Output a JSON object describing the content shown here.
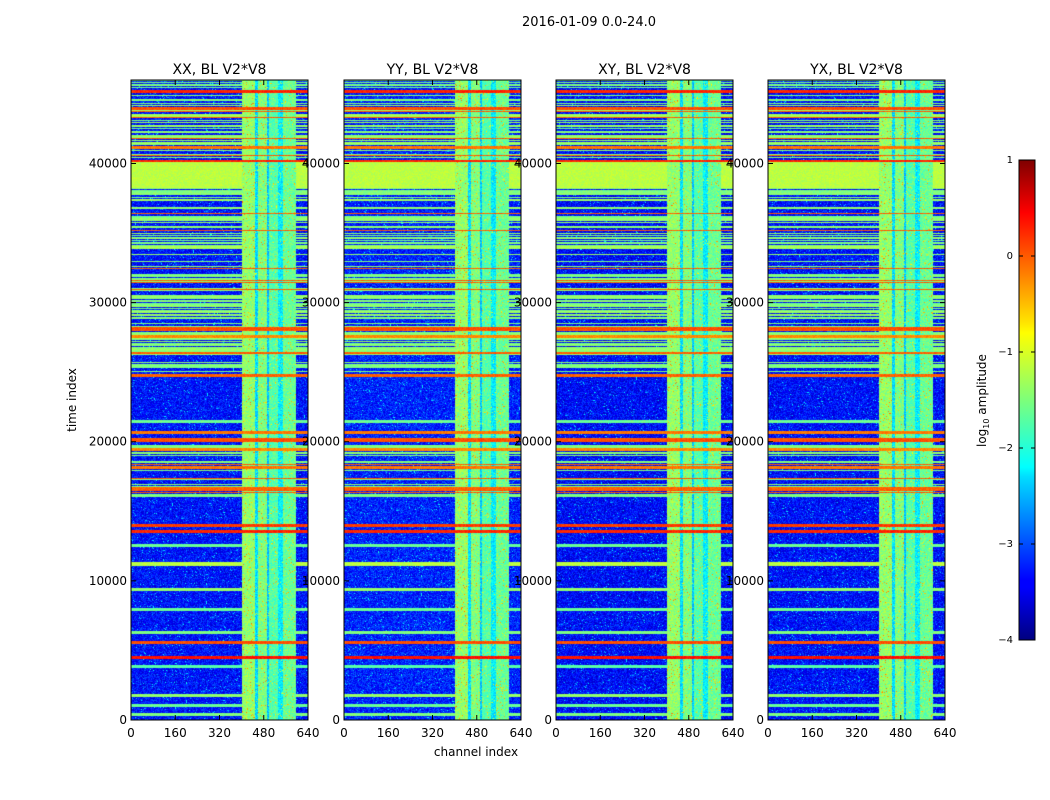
{
  "figure": {
    "suptitle": "2016-01-09 0.0-24.0",
    "ylabel": "time index",
    "xlabel": "channel index"
  },
  "colorbar": {
    "label_main": "log",
    "label_sub": "10",
    "label_tail": " amplitude",
    "range": [
      -4,
      1
    ],
    "ticks": [
      1,
      0,
      -1,
      -2,
      -3,
      -4
    ],
    "tick_labels": [
      "1",
      "0",
      "−1",
      "−2",
      "−3",
      "−4"
    ],
    "colormap": "jet"
  },
  "chart_data": {
    "type": "heatmap",
    "x_range": [
      0,
      640
    ],
    "y_range": [
      0,
      46000
    ],
    "x_ticks": [
      0,
      160,
      320,
      480,
      640
    ],
    "y_ticks": [
      0,
      10000,
      20000,
      30000,
      40000
    ],
    "value_range": [
      -4,
      1
    ],
    "background_level": -3.3,
    "panels": [
      {
        "title": "XX, BL V2*V8",
        "pol": "XX",
        "show_y_tick_zero_only": false
      },
      {
        "title": "YY, BL V2*V8",
        "pol": "YY",
        "show_y_tick_zero_only": false
      },
      {
        "title": "XY, BL V2*V8",
        "pol": "XY",
        "show_y_tick_zero_only": false
      },
      {
        "title": "YX, BL V2*V8",
        "pol": "YX",
        "show_y_tick_zero_only": false
      }
    ],
    "flagged_time_ranges": [
      {
        "from": 38300,
        "to": 40100,
        "level": -1.2
      },
      {
        "from": 11150,
        "to": 11350,
        "level": -1.2
      }
    ],
    "rfi_time_lines": [
      {
        "t": 45200,
        "level": 0.2
      },
      {
        "t": 44000,
        "level": 0.0
      },
      {
        "t": 43500,
        "level": -1.3
      },
      {
        "t": 42000,
        "level": -1.4
      },
      {
        "t": 41200,
        "level": -0.2
      },
      {
        "t": 40200,
        "level": 0.2
      },
      {
        "t": 38000,
        "level": -1.5
      },
      {
        "t": 36000,
        "level": -1.4
      },
      {
        "t": 34000,
        "level": -1.3
      },
      {
        "t": 32000,
        "level": -1.5
      },
      {
        "t": 30500,
        "level": -1.4
      },
      {
        "t": 28200,
        "level": 0.0
      },
      {
        "t": 27600,
        "level": -0.3
      },
      {
        "t": 25500,
        "level": -1.5
      },
      {
        "t": 24800,
        "level": -0.1
      },
      {
        "t": 21500,
        "level": -1.6
      },
      {
        "t": 20700,
        "level": -0.2
      },
      {
        "t": 20100,
        "level": 0.0
      },
      {
        "t": 19500,
        "level": -0.3
      },
      {
        "t": 18200,
        "level": -0.2
      },
      {
        "t": 16700,
        "level": -0.1
      },
      {
        "t": 16200,
        "level": -1.5
      },
      {
        "t": 14000,
        "level": 0.1
      },
      {
        "t": 13600,
        "level": 0.2
      },
      {
        "t": 12600,
        "level": -1.6
      },
      {
        "t": 9400,
        "level": -1.4
      },
      {
        "t": 8000,
        "level": -1.6
      },
      {
        "t": 6300,
        "level": -1.5
      },
      {
        "t": 5600,
        "level": 0.0
      },
      {
        "t": 4500,
        "level": 0.3
      },
      {
        "t": 3900,
        "level": -1.7
      },
      {
        "t": 1800,
        "level": -1.4
      },
      {
        "t": 1100,
        "level": -1.6
      },
      {
        "t": 400,
        "level": -1.5
      }
    ],
    "dense_flag_blocks": [
      {
        "from": 25000,
        "to": 38300
      },
      {
        "from": 16000,
        "to": 21000
      },
      {
        "from": 40100,
        "to": 46000
      }
    ],
    "rfi_channel_bands": [
      {
        "from": 400,
        "to": 450,
        "level": -1.4
      },
      {
        "from": 450,
        "to": 460,
        "level": -2.3
      },
      {
        "from": 460,
        "to": 490,
        "level": -1.5
      },
      {
        "from": 490,
        "to": 500,
        "level": -2.4
      },
      {
        "from": 500,
        "to": 530,
        "level": -1.7
      },
      {
        "from": 530,
        "to": 550,
        "level": -2.2
      },
      {
        "from": 550,
        "to": 595,
        "level": -1.6
      }
    ]
  }
}
